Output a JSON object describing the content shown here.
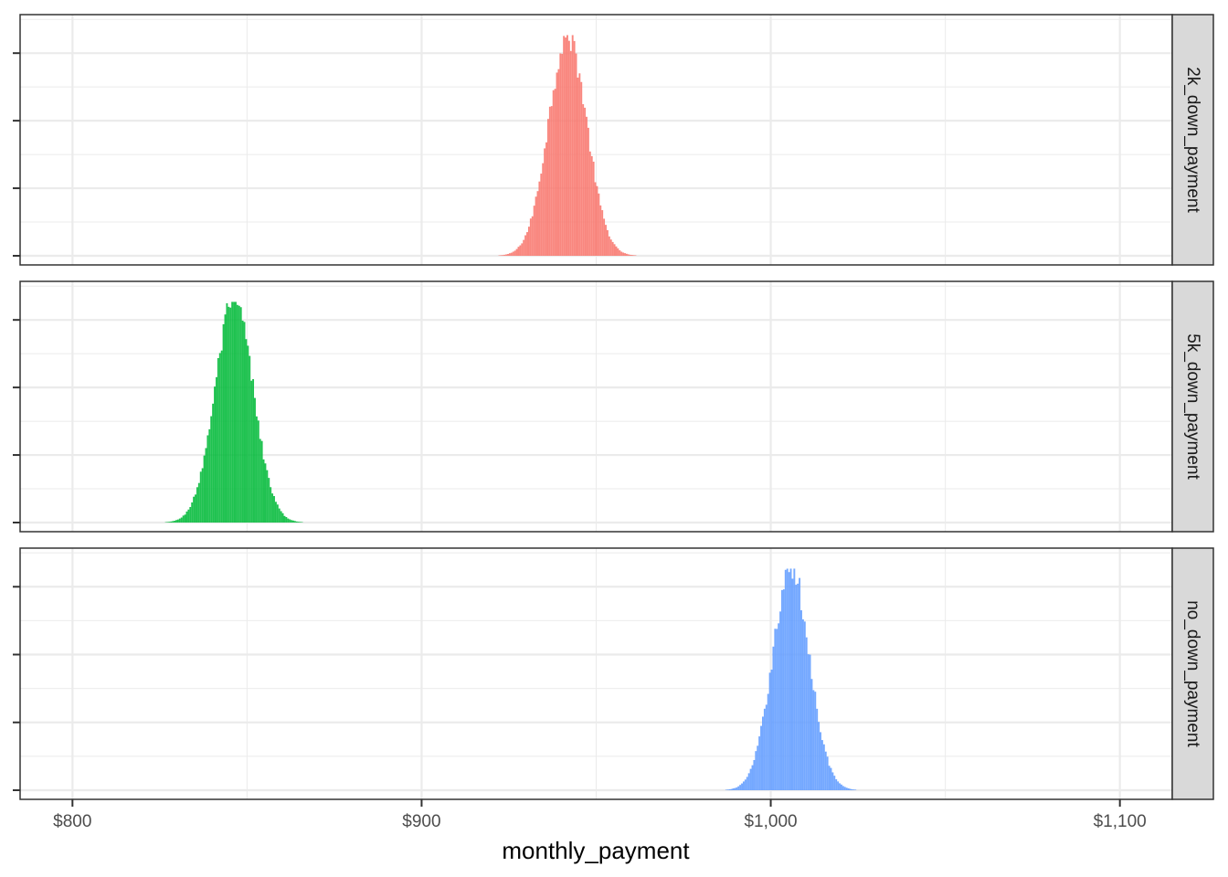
{
  "chart_data": {
    "type": "histogram",
    "faceted": true,
    "facet_direction": "rows",
    "xlabel": "monthly_payment",
    "ylabel": "",
    "xlim": [
      785,
      1115
    ],
    "x_ticks": [
      {
        "value": 800,
        "label": "$800"
      },
      {
        "value": 900,
        "label": "$900"
      },
      {
        "value": 1000,
        "label": "$1,000"
      },
      {
        "value": 1100,
        "label": "$1,100"
      }
    ],
    "y_tick_labels_visible": false,
    "grid": true,
    "theme": "bw",
    "bin_width": 0.5,
    "series": [
      {
        "name": "2k_down_payment",
        "color": "#F8766D",
        "center": 941.8,
        "sd": 5.5,
        "min": 916,
        "max": 967,
        "peak_fraction": 0.99
      },
      {
        "name": "5k_down_payment",
        "color": "#00BA38",
        "center": 846.3,
        "sd": 5.5,
        "min": 820,
        "max": 872,
        "peak_fraction": 0.99
      },
      {
        "name": "no_down_payment",
        "color": "#619CFF",
        "center": 1005.8,
        "sd": 5.3,
        "min": 980,
        "max": 1031,
        "peak_fraction": 0.99
      }
    ]
  }
}
